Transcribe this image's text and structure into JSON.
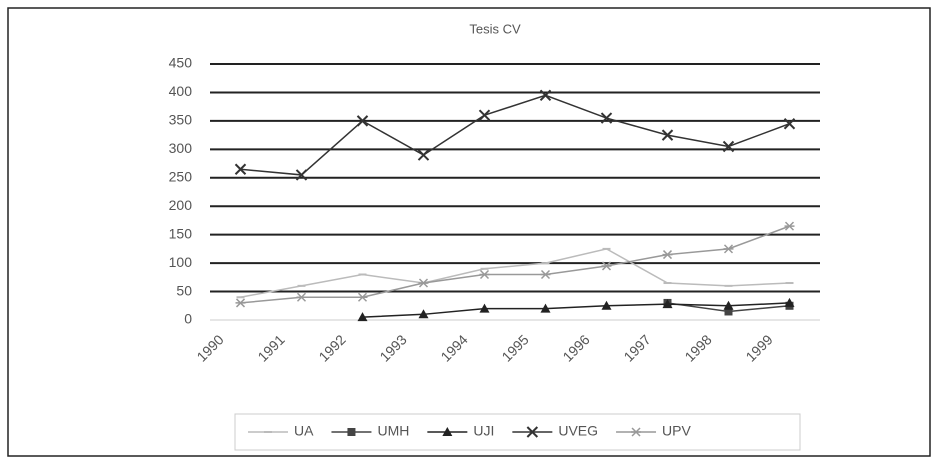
{
  "chart_data": {
    "type": "line",
    "title": "Tesis CV",
    "categories": [
      "1990",
      "1991",
      "1992",
      "1993",
      "1994",
      "1995",
      "1996",
      "1997",
      "1998",
      "1999"
    ],
    "ylim": [
      0,
      450
    ],
    "yticks": [
      0,
      50,
      100,
      150,
      200,
      250,
      300,
      350,
      400,
      450
    ],
    "grid": true,
    "legend": "bottom",
    "series": [
      {
        "name": "UA",
        "color": "#bbbbbb",
        "marker": "dash",
        "values": [
          40,
          60,
          80,
          65,
          90,
          100,
          125,
          65,
          60,
          65
        ]
      },
      {
        "name": "UMH",
        "color": "#444444",
        "marker": "square",
        "values": [
          null,
          null,
          null,
          null,
          null,
          null,
          null,
          30,
          15,
          25
        ]
      },
      {
        "name": "UJI",
        "color": "#222222",
        "marker": "triangle",
        "values": [
          null,
          null,
          5,
          10,
          20,
          20,
          25,
          28,
          25,
          30
        ]
      },
      {
        "name": "UVEG",
        "color": "#333333",
        "marker": "cross",
        "values": [
          265,
          255,
          350,
          290,
          360,
          395,
          355,
          325,
          305,
          345
        ]
      },
      {
        "name": "UPV",
        "color": "#999999",
        "marker": "star",
        "values": [
          30,
          40,
          40,
          65,
          80,
          80,
          95,
          115,
          125,
          165
        ]
      }
    ]
  }
}
